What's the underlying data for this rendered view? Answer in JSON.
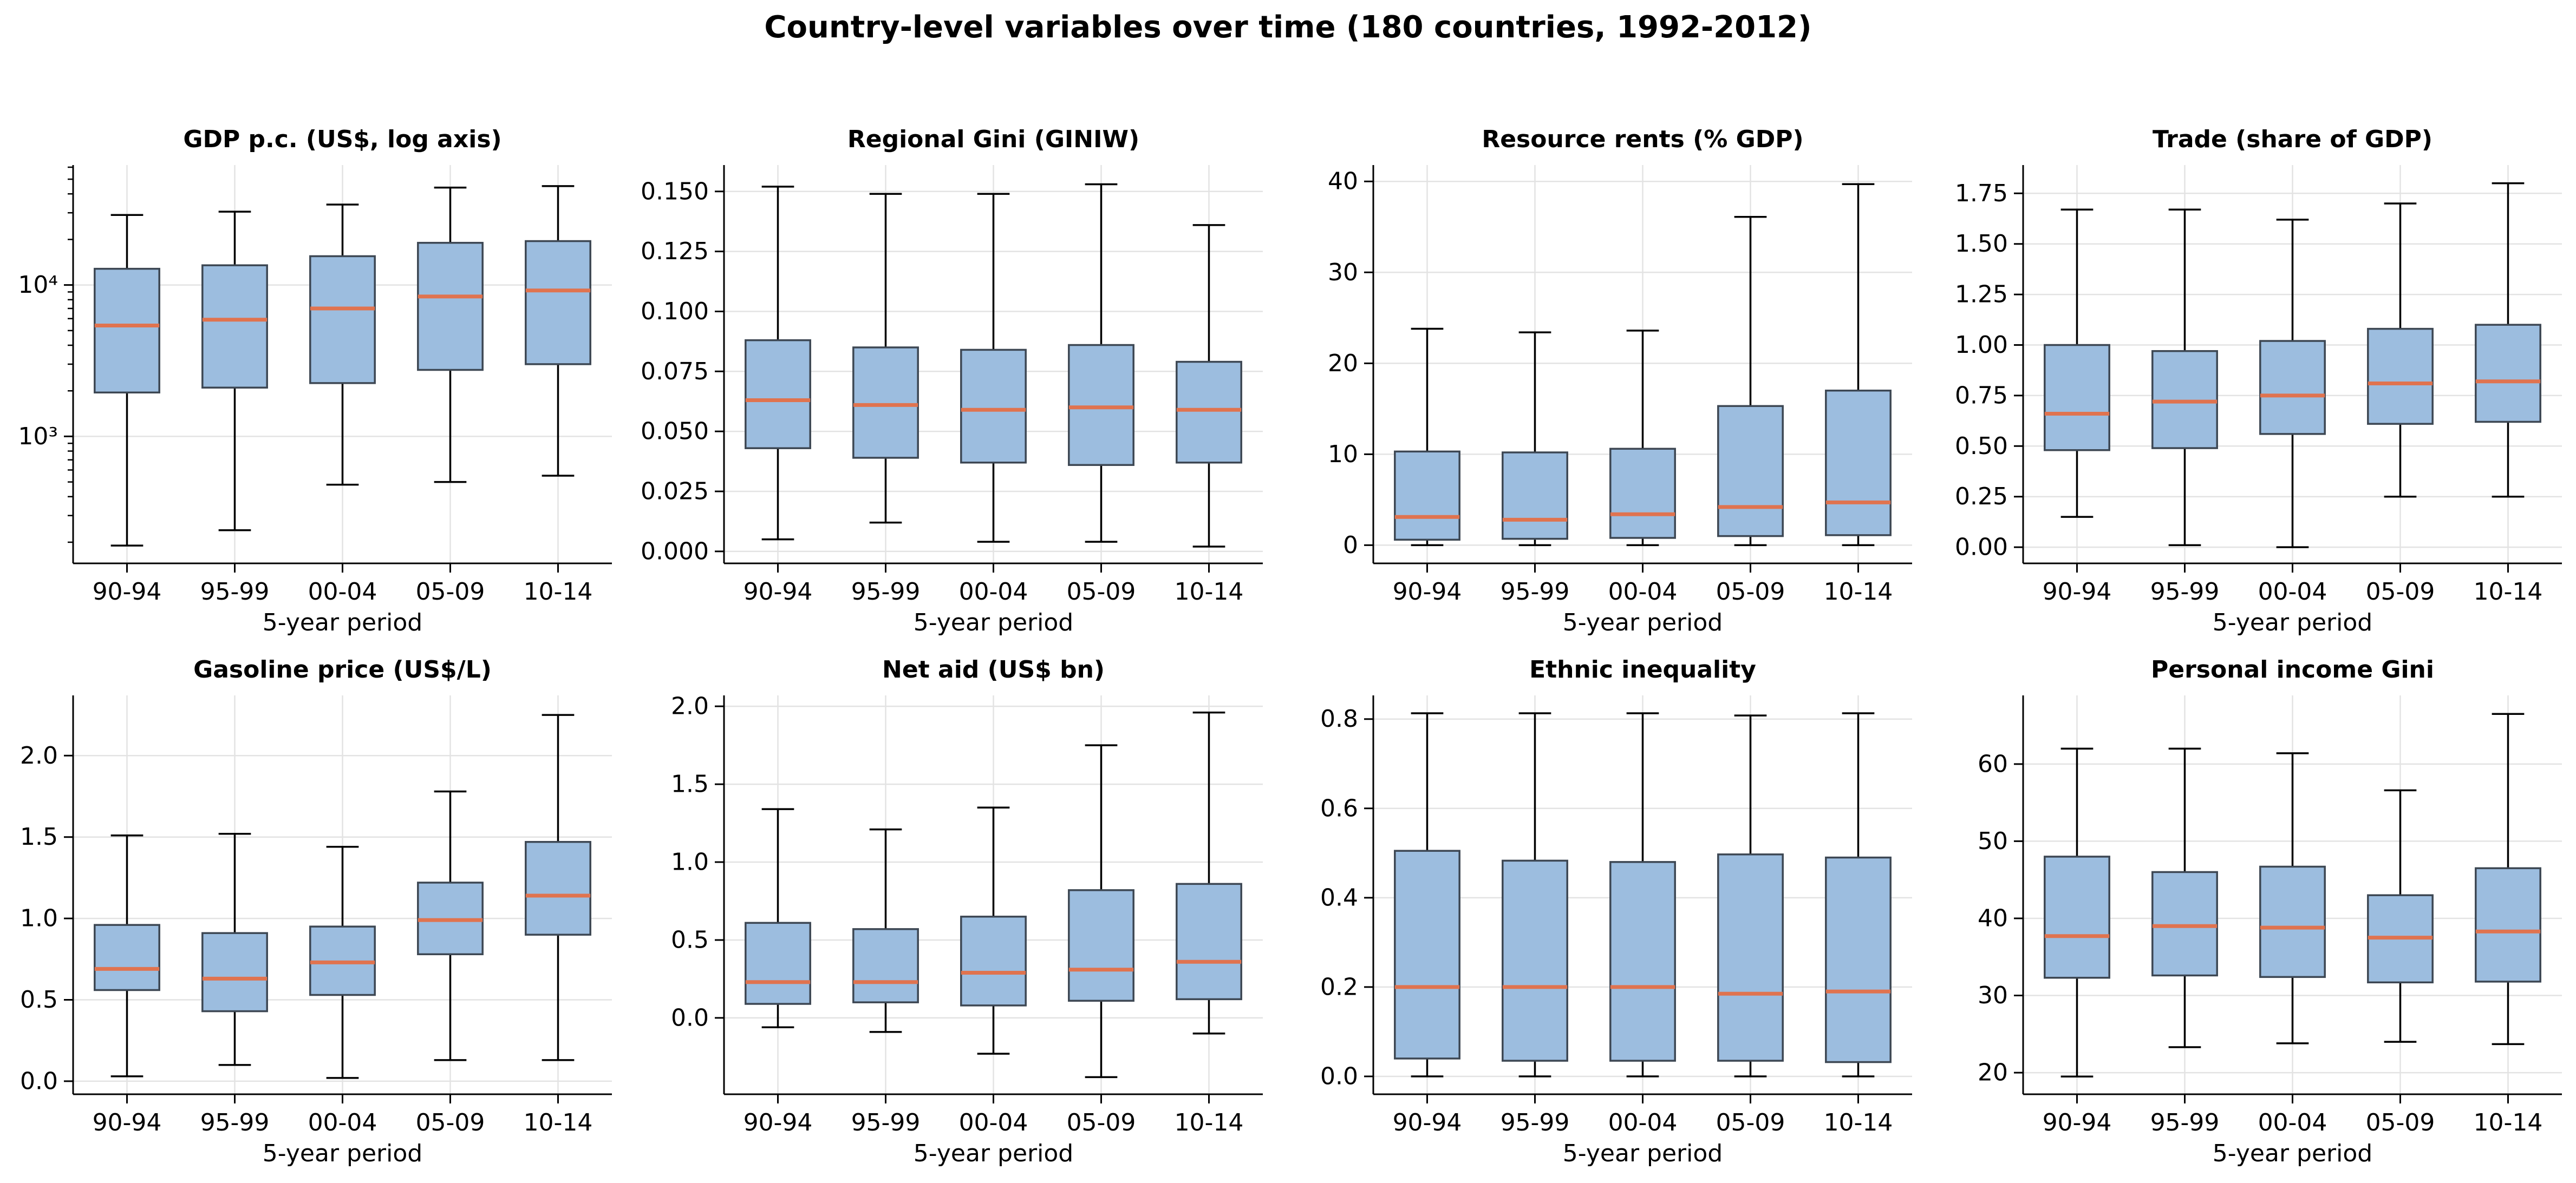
{
  "suptitle": "Country-level variables over time (180 countries, 1992-2012)",
  "colors": {
    "box_fill": "#9cbddf",
    "box_edge": "#3d4753",
    "median": "#e0734f",
    "grid": "#e3e3e3",
    "axis": "#000000"
  },
  "chart_data": [
    {
      "type": "box",
      "title": "GDP p.c. (US$, log axis)",
      "xlabel": "5-year period",
      "ylabel": "",
      "yscale": "log",
      "ylim": [
        145,
        62000
      ],
      "yticks": [
        1000,
        10000
      ],
      "ytick_labels": [
        "10³",
        "10⁴"
      ],
      "grid": true,
      "categories": [
        "90-94",
        "95-99",
        "00-04",
        "05-09",
        "10-14"
      ],
      "boxes": [
        {
          "low": 190,
          "q1": 1950,
          "median": 5400,
          "q3": 12800,
          "high": 29000
        },
        {
          "low": 240,
          "q1": 2100,
          "median": 5900,
          "q3": 13500,
          "high": 30500
        },
        {
          "low": 480,
          "q1": 2250,
          "median": 7000,
          "q3": 15500,
          "high": 34000
        },
        {
          "low": 500,
          "q1": 2750,
          "median": 8400,
          "q3": 19000,
          "high": 44000
        },
        {
          "low": 550,
          "q1": 3000,
          "median": 9200,
          "q3": 19500,
          "high": 45000
        }
      ]
    },
    {
      "type": "box",
      "title": "Regional Gini (GINIW)",
      "xlabel": "5-year period",
      "ylabel": "",
      "yscale": "linear",
      "ylim": [
        -0.005,
        0.161
      ],
      "yticks": [
        0.0,
        0.025,
        0.05,
        0.075,
        0.1,
        0.125,
        0.15
      ],
      "ytick_labels": [
        "0.000",
        "0.025",
        "0.050",
        "0.075",
        "0.100",
        "0.125",
        "0.150"
      ],
      "grid": true,
      "categories": [
        "90-94",
        "95-99",
        "00-04",
        "05-09",
        "10-14"
      ],
      "boxes": [
        {
          "low": 0.005,
          "q1": 0.043,
          "median": 0.063,
          "q3": 0.088,
          "high": 0.152
        },
        {
          "low": 0.012,
          "q1": 0.039,
          "median": 0.061,
          "q3": 0.085,
          "high": 0.149
        },
        {
          "low": 0.004,
          "q1": 0.037,
          "median": 0.059,
          "q3": 0.084,
          "high": 0.149
        },
        {
          "low": 0.004,
          "q1": 0.036,
          "median": 0.06,
          "q3": 0.086,
          "high": 0.153
        },
        {
          "low": 0.002,
          "q1": 0.037,
          "median": 0.059,
          "q3": 0.079,
          "high": 0.136
        }
      ]
    },
    {
      "type": "box",
      "title": "Resource rents (% GDP)",
      "xlabel": "5-year period",
      "ylabel": "",
      "yscale": "linear",
      "ylim": [
        -2.0,
        41.8
      ],
      "yticks": [
        0,
        10,
        20,
        30,
        40
      ],
      "ytick_labels": [
        "0",
        "10",
        "20",
        "30",
        "40"
      ],
      "grid": true,
      "categories": [
        "90-94",
        "95-99",
        "00-04",
        "05-09",
        "10-14"
      ],
      "boxes": [
        {
          "low": 0.0,
          "q1": 0.6,
          "median": 3.1,
          "q3": 10.3,
          "high": 23.8
        },
        {
          "low": 0.0,
          "q1": 0.7,
          "median": 2.8,
          "q3": 10.2,
          "high": 23.4
        },
        {
          "low": 0.0,
          "q1": 0.8,
          "median": 3.4,
          "q3": 10.6,
          "high": 23.6
        },
        {
          "low": 0.0,
          "q1": 1.0,
          "median": 4.2,
          "q3": 15.3,
          "high": 36.1
        },
        {
          "low": 0.0,
          "q1": 1.1,
          "median": 4.7,
          "q3": 17.0,
          "high": 39.7
        }
      ]
    },
    {
      "type": "box",
      "title": "Trade (share of GDP)",
      "xlabel": "5-year period",
      "ylabel": "",
      "yscale": "linear",
      "ylim": [
        -0.08,
        1.89
      ],
      "yticks": [
        0.0,
        0.25,
        0.5,
        0.75,
        1.0,
        1.25,
        1.5,
        1.75
      ],
      "ytick_labels": [
        "0.00",
        "0.25",
        "0.50",
        "0.75",
        "1.00",
        "1.25",
        "1.50",
        "1.75"
      ],
      "grid": true,
      "categories": [
        "90-94",
        "95-99",
        "00-04",
        "05-09",
        "10-14"
      ],
      "boxes": [
        {
          "low": 0.15,
          "q1": 0.48,
          "median": 0.66,
          "q3": 1.0,
          "high": 1.67
        },
        {
          "low": 0.01,
          "q1": 0.49,
          "median": 0.72,
          "q3": 0.97,
          "high": 1.67
        },
        {
          "low": 0.0,
          "q1": 0.56,
          "median": 0.75,
          "q3": 1.02,
          "high": 1.62
        },
        {
          "low": 0.25,
          "q1": 0.61,
          "median": 0.81,
          "q3": 1.08,
          "high": 1.7
        },
        {
          "low": 0.25,
          "q1": 0.62,
          "median": 0.82,
          "q3": 1.1,
          "high": 1.8
        }
      ]
    },
    {
      "type": "box",
      "title": "Gasoline price (US$/L)",
      "xlabel": "5-year period",
      "ylabel": "",
      "yscale": "linear",
      "ylim": [
        -0.08,
        2.37
      ],
      "yticks": [
        0.0,
        0.5,
        1.0,
        1.5,
        2.0
      ],
      "ytick_labels": [
        "0.0",
        "0.5",
        "1.0",
        "1.5",
        "2.0"
      ],
      "grid": true,
      "categories": [
        "90-94",
        "95-99",
        "00-04",
        "05-09",
        "10-14"
      ],
      "boxes": [
        {
          "low": 0.03,
          "q1": 0.56,
          "median": 0.69,
          "q3": 0.96,
          "high": 1.51
        },
        {
          "low": 0.1,
          "q1": 0.43,
          "median": 0.63,
          "q3": 0.91,
          "high": 1.52
        },
        {
          "low": 0.02,
          "q1": 0.53,
          "median": 0.73,
          "q3": 0.95,
          "high": 1.44
        },
        {
          "low": 0.13,
          "q1": 0.78,
          "median": 0.99,
          "q3": 1.22,
          "high": 1.78
        },
        {
          "low": 0.13,
          "q1": 0.9,
          "median": 1.14,
          "q3": 1.47,
          "high": 2.25
        }
      ]
    },
    {
      "type": "box",
      "title": "Net aid (US$ bn)",
      "xlabel": "5-year period",
      "ylabel": "",
      "yscale": "linear",
      "ylim": [
        -0.49,
        2.07
      ],
      "yticks": [
        0.0,
        0.5,
        1.0,
        1.5,
        2.0
      ],
      "ytick_labels": [
        "0.0",
        "0.5",
        "1.0",
        "1.5",
        "2.0"
      ],
      "grid": true,
      "categories": [
        "90-94",
        "95-99",
        "00-04",
        "05-09",
        "10-14"
      ],
      "boxes": [
        {
          "low": -0.06,
          "q1": 0.09,
          "median": 0.23,
          "q3": 0.61,
          "high": 1.34
        },
        {
          "low": -0.09,
          "q1": 0.1,
          "median": 0.23,
          "q3": 0.57,
          "high": 1.21
        },
        {
          "low": -0.23,
          "q1": 0.08,
          "median": 0.29,
          "q3": 0.65,
          "high": 1.35
        },
        {
          "low": -0.38,
          "q1": 0.11,
          "median": 0.31,
          "q3": 0.82,
          "high": 1.75
        },
        {
          "low": -0.1,
          "q1": 0.12,
          "median": 0.36,
          "q3": 0.86,
          "high": 1.96
        }
      ]
    },
    {
      "type": "box",
      "title": "Ethnic inequality",
      "xlabel": "5-year period",
      "ylabel": "",
      "yscale": "linear",
      "ylim": [
        -0.04,
        0.853
      ],
      "yticks": [
        0.0,
        0.2,
        0.4,
        0.6,
        0.8
      ],
      "ytick_labels": [
        "0.0",
        "0.2",
        "0.4",
        "0.6",
        "0.8"
      ],
      "grid": true,
      "categories": [
        "90-94",
        "95-99",
        "00-04",
        "05-09",
        "10-14"
      ],
      "boxes": [
        {
          "low": 0.0,
          "q1": 0.04,
          "median": 0.2,
          "q3": 0.505,
          "high": 0.813
        },
        {
          "low": 0.0,
          "q1": 0.035,
          "median": 0.2,
          "q3": 0.483,
          "high": 0.813
        },
        {
          "low": 0.0,
          "q1": 0.035,
          "median": 0.2,
          "q3": 0.48,
          "high": 0.813
        },
        {
          "low": 0.0,
          "q1": 0.035,
          "median": 0.185,
          "q3": 0.497,
          "high": 0.808
        },
        {
          "low": 0.0,
          "q1": 0.032,
          "median": 0.19,
          "q3": 0.49,
          "high": 0.813
        }
      ]
    },
    {
      "type": "box",
      "title": "Personal income Gini",
      "xlabel": "5-year period",
      "ylabel": "",
      "yscale": "linear",
      "ylim": [
        17.2,
        68.9
      ],
      "yticks": [
        20,
        30,
        40,
        50,
        60
      ],
      "ytick_labels": [
        "20",
        "30",
        "40",
        "50",
        "60"
      ],
      "grid": true,
      "categories": [
        "90-94",
        "95-99",
        "00-04",
        "05-09",
        "10-14"
      ],
      "boxes": [
        {
          "low": 19.5,
          "q1": 32.3,
          "median": 37.7,
          "q3": 48.0,
          "high": 62.0
        },
        {
          "low": 23.3,
          "q1": 32.6,
          "median": 39.0,
          "q3": 46.0,
          "high": 62.0
        },
        {
          "low": 23.8,
          "q1": 32.4,
          "median": 38.8,
          "q3": 46.7,
          "high": 61.4
        },
        {
          "low": 24.0,
          "q1": 31.7,
          "median": 37.5,
          "q3": 43.0,
          "high": 56.6
        },
        {
          "low": 23.7,
          "q1": 31.8,
          "median": 38.3,
          "q3": 46.5,
          "high": 66.5
        }
      ]
    }
  ]
}
